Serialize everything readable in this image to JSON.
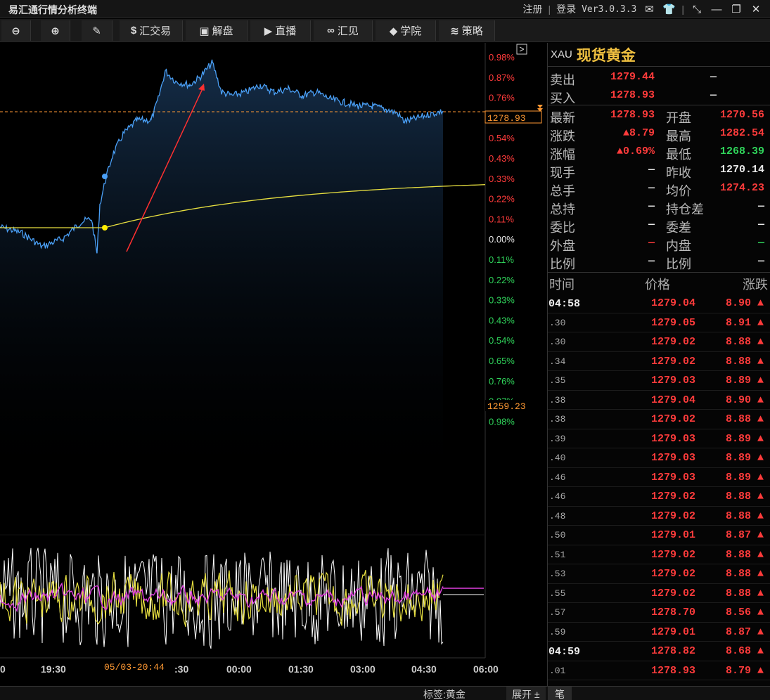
{
  "app": {
    "title": "易汇通行情分析终端",
    "register": "注册",
    "login": "登录",
    "version": "Ver3.0.3.3"
  },
  "toolbar": {
    "zoom_out_icon": "zoom-out-icon",
    "zoom_in_icon": "zoom-in-icon",
    "draw_icon": "pen-icon",
    "items": [
      {
        "label": "汇交易",
        "icon": "$"
      },
      {
        "label": "解盘",
        "icon": "▣"
      },
      {
        "label": "直播",
        "icon": "▶"
      },
      {
        "label": "汇见",
        "icon": "∞"
      },
      {
        "label": "学院",
        "icon": "◆"
      },
      {
        "label": "策略",
        "icon": "≋"
      }
    ]
  },
  "chart_data": {
    "type": "line",
    "x_ticks": [
      "0",
      "19:30",
      "20:44",
      ":30",
      "00:00",
      "01:30",
      "03:00",
      "04:30",
      "06:00"
    ],
    "cursor_label": "05/03-20:44",
    "pct_labels": [
      "0.98%",
      "0.87%",
      "0.76%",
      "0.65%",
      "0.54%",
      "0.43%",
      "0.33%",
      "0.22%",
      "0.11%",
      "0.00%",
      "0.11%",
      "0.22%",
      "0.33%",
      "0.43%",
      "0.54%",
      "0.65%",
      "0.76%",
      "0.87%",
      "0.98%"
    ],
    "current_price_label": "1278.93",
    "low_price_label": "1259.23",
    "colors": {
      "price": "#4a9ff5",
      "avg": "#e8e040",
      "up": "#ff3b3b",
      "down": "#2fd35a",
      "ref": "#ff9933",
      "fill": "#10243a",
      "osc_white": "#ffffff",
      "osc_yellow": "#e8e040",
      "osc_magenta": "#e040e0"
    }
  },
  "quote": {
    "code": "XAU",
    "name": "现货黄金",
    "sell_label": "卖出",
    "sell": "1279.44",
    "sell_vol": "—",
    "buy_label": "买入",
    "buy": "1278.93",
    "buy_vol": "—",
    "rows": [
      {
        "l1": "最新",
        "v1": "1278.93",
        "c1": "red",
        "l2": "开盘",
        "v2": "1270.56",
        "c2": "red"
      },
      {
        "l1": "涨跌",
        "v1": "▲8.79",
        "c1": "red",
        "l2": "最高",
        "v2": "1282.54",
        "c2": "red"
      },
      {
        "l1": "涨幅",
        "v1": "▲0.69%",
        "c1": "red",
        "l2": "最低",
        "v2": "1268.39",
        "c2": "green"
      },
      {
        "l1": "现手",
        "v1": "—",
        "c1": "white",
        "l2": "昨收",
        "v2": "1270.14",
        "c2": "white"
      },
      {
        "l1": "总手",
        "v1": "—",
        "c1": "white",
        "l2": "均价",
        "v2": "1274.23",
        "c2": "red"
      },
      {
        "l1": "总持",
        "v1": "—",
        "c1": "white",
        "l2": "持仓差",
        "v2": "—",
        "c2": "white"
      },
      {
        "l1": "委比",
        "v1": "—",
        "c1": "white",
        "l2": "委差",
        "v2": "—",
        "c2": "white"
      },
      {
        "l1": "外盘",
        "v1": "—",
        "c1": "red",
        "l2": "内盘",
        "v2": "—",
        "c2": "green"
      },
      {
        "l1": "比例",
        "v1": "—",
        "c1": "white",
        "l2": "比例",
        "v2": "—",
        "c2": "white"
      }
    ]
  },
  "ticks": {
    "headers": {
      "time": "时间",
      "price": "价格",
      "change": "涨跌"
    },
    "rows": [
      {
        "time": "04:58",
        "major": true,
        "price": "1279.04",
        "chg": "8.90"
      },
      {
        "time": ".30",
        "price": "1279.05",
        "chg": "8.91"
      },
      {
        "time": ".30",
        "price": "1279.02",
        "chg": "8.88"
      },
      {
        "time": ".34",
        "price": "1279.02",
        "chg": "8.88"
      },
      {
        "time": ".35",
        "price": "1279.03",
        "chg": "8.89"
      },
      {
        "time": ".38",
        "price": "1279.04",
        "chg": "8.90"
      },
      {
        "time": ".38",
        "price": "1279.02",
        "chg": "8.88"
      },
      {
        "time": ".39",
        "price": "1279.03",
        "chg": "8.89"
      },
      {
        "time": ".40",
        "price": "1279.03",
        "chg": "8.89"
      },
      {
        "time": ".46",
        "price": "1279.03",
        "chg": "8.89"
      },
      {
        "time": ".46",
        "price": "1279.02",
        "chg": "8.88"
      },
      {
        "time": ".48",
        "price": "1279.02",
        "chg": "8.88"
      },
      {
        "time": ".50",
        "price": "1279.01",
        "chg": "8.87"
      },
      {
        "time": ".51",
        "price": "1279.02",
        "chg": "8.88"
      },
      {
        "time": ".53",
        "price": "1279.02",
        "chg": "8.88"
      },
      {
        "time": ".55",
        "price": "1279.02",
        "chg": "8.88"
      },
      {
        "time": ".57",
        "price": "1278.70",
        "chg": "8.56"
      },
      {
        "time": ".59",
        "price": "1279.01",
        "chg": "8.87"
      },
      {
        "time": "04:59",
        "major": true,
        "price": "1278.82",
        "chg": "8.68"
      },
      {
        "time": ".01",
        "price": "1278.93",
        "chg": "8.79"
      }
    ]
  },
  "status": {
    "tag": "标签:黄金",
    "expand": "展开 ±",
    "bi": "笔"
  }
}
